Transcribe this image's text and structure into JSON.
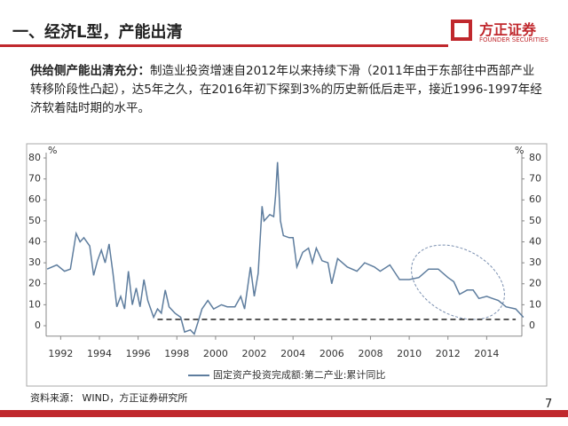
{
  "header": {
    "title": "一、经济L型，产能出清",
    "logo_name": "方正证券",
    "logo_sub": "FOUNDER SECURITIES"
  },
  "body": {
    "lead": "供给侧产能出清充分：",
    "text": "制造业投资增速自2012年以来持续下滑（2011年由于东部往中西部产业转移阶段性凸起），达5年之久，在2016年初下探到3%的历史新低后走平，接近1996-1997年经济软着陆时期的水平。"
  },
  "chart_data": {
    "type": "line",
    "y_unit_left": "%",
    "y_unit_right": "%",
    "x": [
      1991.3,
      1991.8,
      1992.2,
      1992.5,
      1992.8,
      1993.0,
      1993.2,
      1993.5,
      1993.7,
      1993.9,
      1994.1,
      1994.3,
      1994.5,
      1994.7,
      1994.9,
      1995.1,
      1995.3,
      1995.5,
      1995.7,
      1995.9,
      1996.1,
      1996.3,
      1996.5,
      1996.8,
      1997.0,
      1997.2,
      1997.4,
      1997.6,
      1997.9,
      1998.2,
      1998.4,
      1998.7,
      1998.9,
      1999.1,
      1999.3,
      1999.6,
      1999.9,
      2000.3,
      2000.6,
      2001.0,
      2001.3,
      2001.5,
      2001.8,
      2002.0,
      2002.2,
      2002.4,
      2002.5,
      2002.8,
      2003.0,
      2003.1,
      2003.2,
      2003.35,
      2003.5,
      2003.8,
      2004.0,
      2004.2,
      2004.5,
      2004.8,
      2005.0,
      2005.2,
      2005.5,
      2005.8,
      2006.0,
      2006.3,
      2006.8,
      2007.3,
      2007.7,
      2008.2,
      2008.5,
      2009.0,
      2009.5,
      2010.0,
      2010.5,
      2011.0,
      2011.5,
      2012.0,
      2012.3,
      2012.6,
      2013.0,
      2013.3,
      2013.6,
      2014.0,
      2014.3,
      2014.6,
      2015.0,
      2015.5,
      2015.9
    ],
    "series": [
      {
        "name": "固定资产投资完成额:第二产业:累计同比",
        "color": "#5e7d9e",
        "values": [
          27,
          29,
          26,
          27,
          44,
          40,
          42,
          38,
          24,
          31,
          36,
          30,
          39,
          25,
          9,
          14,
          8,
          26,
          10,
          18,
          9,
          22,
          12,
          4,
          8,
          6,
          17,
          9,
          6,
          4,
          -3,
          -2,
          -4,
          2,
          8,
          12,
          8,
          10,
          9,
          9,
          14,
          8,
          28,
          14,
          25,
          57,
          50,
          53,
          52,
          62,
          78,
          50,
          43,
          42,
          42,
          28,
          35,
          37,
          30,
          37,
          31,
          30,
          20,
          32,
          28,
          26,
          30,
          28,
          26,
          29,
          22,
          22,
          23,
          27,
          27,
          23,
          21,
          15,
          17,
          17,
          13,
          14,
          13,
          12,
          9,
          8,
          4
        ]
      }
    ],
    "reference_line": 3,
    "xlim": [
      1991.25,
      2016
    ],
    "xticks": [
      1992,
      1994,
      1996,
      1998,
      2000,
      2002,
      2004,
      2006,
      2008,
      2010,
      2012,
      2014
    ],
    "ylim": [
      -5,
      80
    ],
    "yticks": [
      0,
      10,
      20,
      30,
      40,
      50,
      60,
      70,
      80
    ]
  },
  "footer": {
    "source": "资料来源： WIND，方正证券研究所",
    "page": "7"
  }
}
